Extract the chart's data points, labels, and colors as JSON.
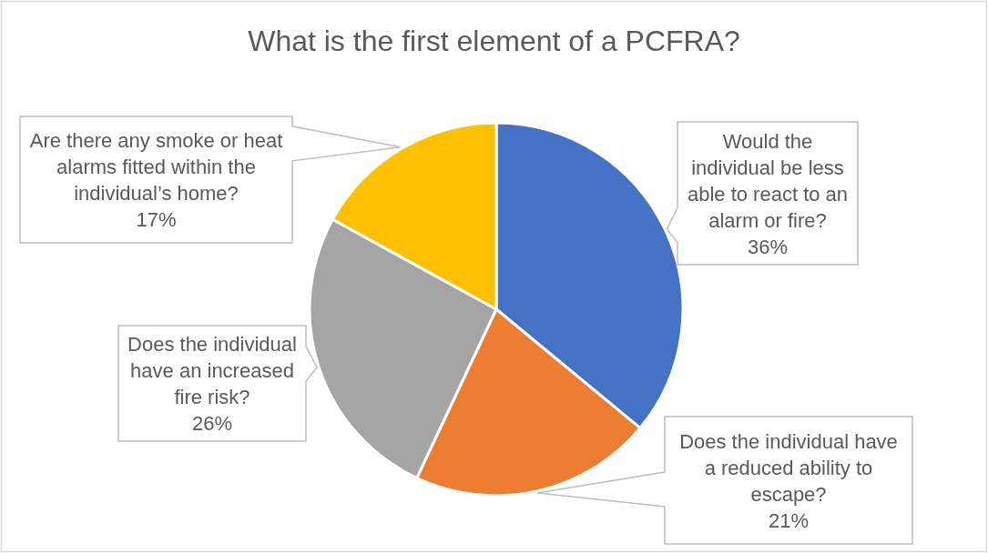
{
  "chart_data": {
    "type": "pie",
    "title": "What is the first element of a PCFRA?",
    "categories": [
      "Would the individual be less able to react to an alarm or fire?",
      "Does the individual have a reduced ability to escape?",
      "Does the individual have an increased fire risk?",
      "Are there any smoke or heat alarms fitted within the individual’s home?"
    ],
    "values": [
      36,
      21,
      26,
      17
    ],
    "colors": [
      "#4472c4",
      "#ed7d31",
      "#a5a5a5",
      "#ffc000"
    ],
    "value_labels": [
      "36%",
      "21%",
      "26%",
      "17%"
    ]
  }
}
